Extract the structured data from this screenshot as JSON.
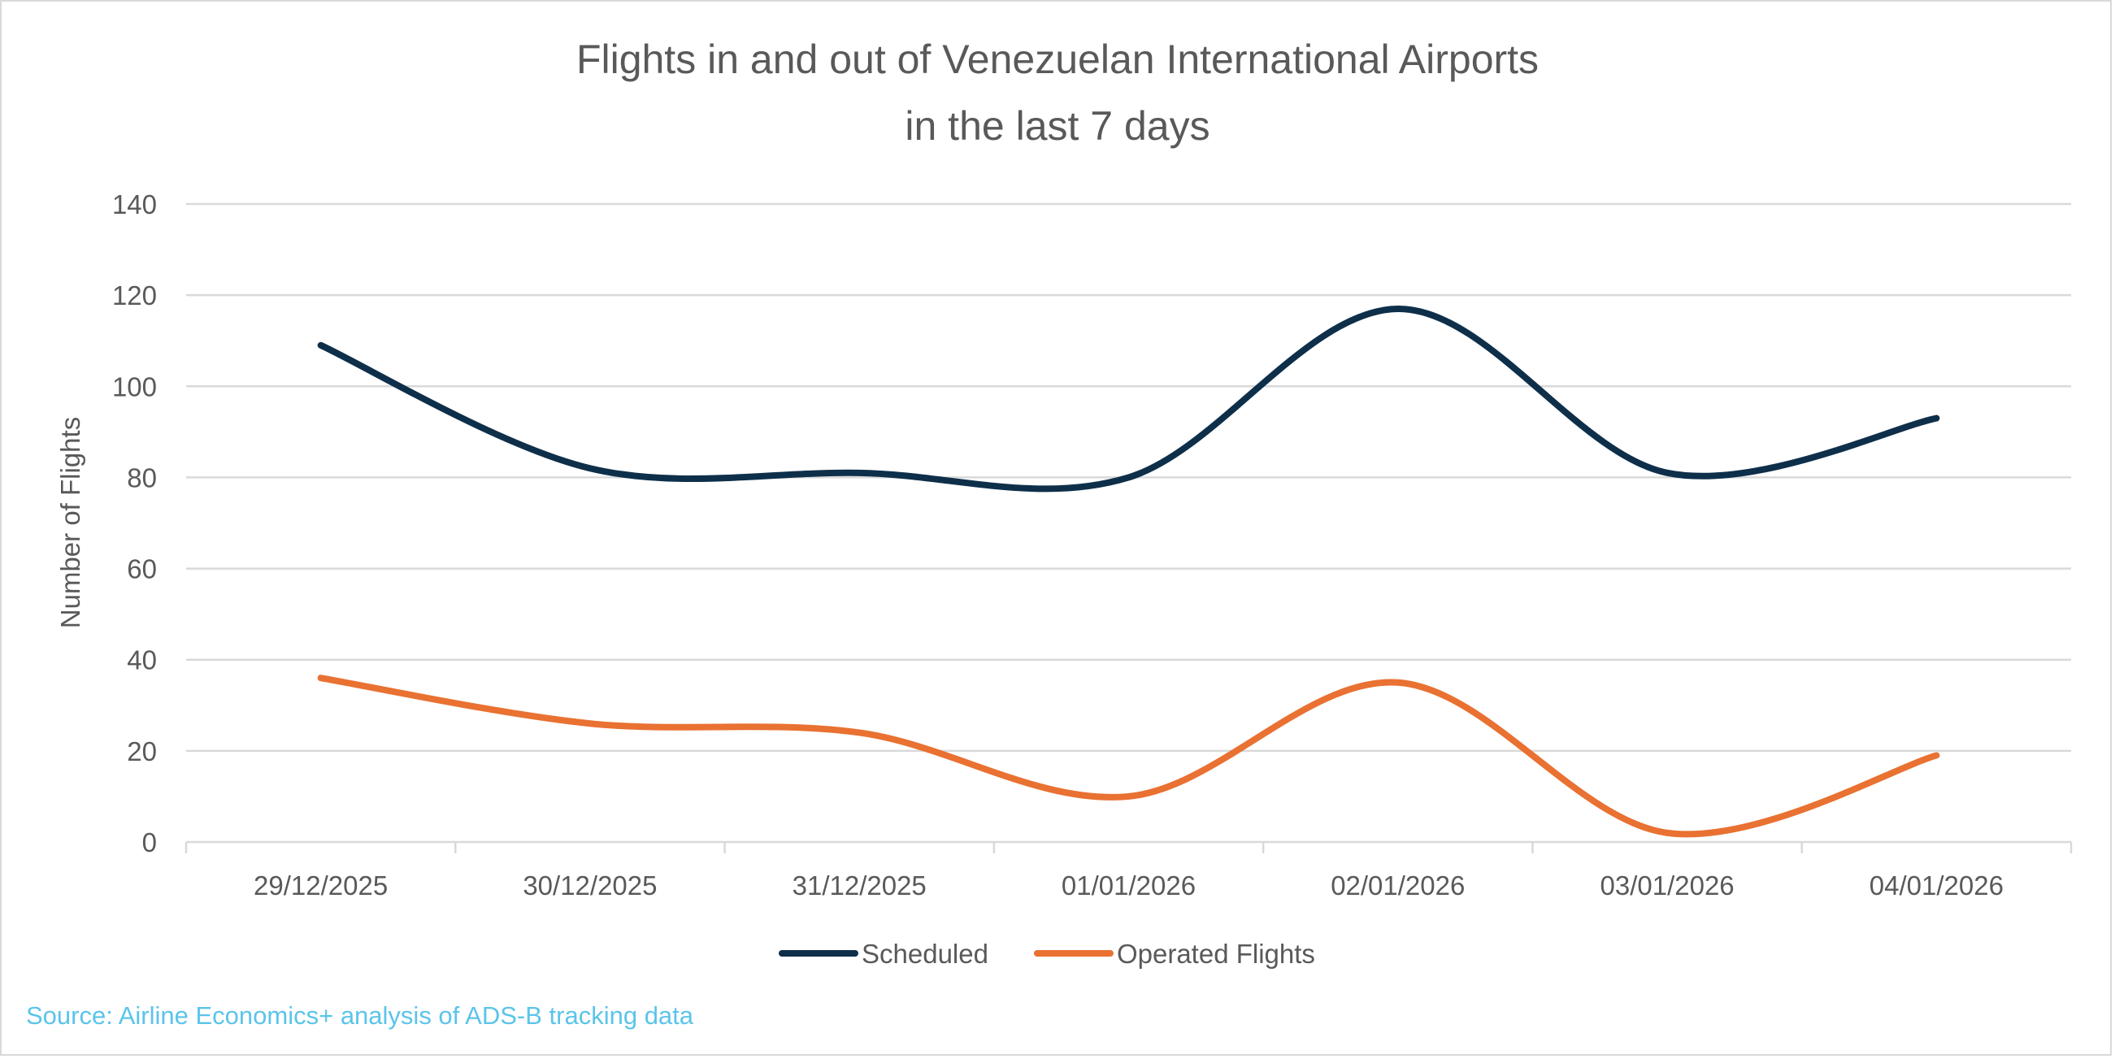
{
  "chart_data": {
    "type": "line",
    "title": "Flights in and out of Venezuelan International Airports",
    "subtitle": "in the last 7 days",
    "xlabel": "",
    "ylabel": "Number of Flights",
    "categories": [
      "29/12/2025",
      "30/12/2025",
      "31/12/2025",
      "01/01/2026",
      "02/01/2026",
      "03/01/2026",
      "04/01/2026"
    ],
    "ylim": [
      0,
      140
    ],
    "yticks": [
      0,
      20,
      40,
      60,
      80,
      100,
      120,
      140
    ],
    "grid": true,
    "smoothed": true,
    "legend_position": "bottom",
    "series": [
      {
        "name": "Scheduled",
        "color": "#0e2f4a",
        "values": [
          109,
          82,
          81,
          80,
          117,
          81,
          93
        ]
      },
      {
        "name": "Operated Flights",
        "color": "#e97132",
        "values": [
          36,
          26,
          24,
          10,
          35,
          2,
          19
        ]
      }
    ],
    "source": "Source: Airline Economics+  analysis of ADS-B tracking data"
  }
}
